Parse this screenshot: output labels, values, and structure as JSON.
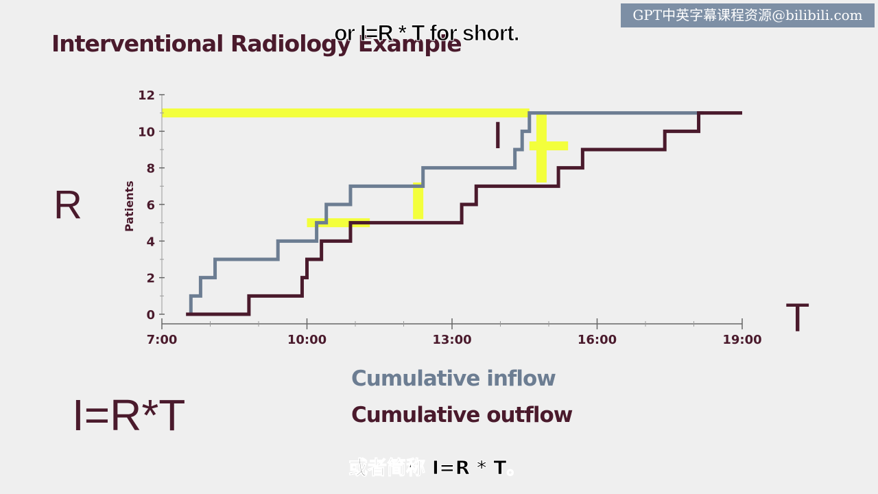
{
  "watermark": "GPT中英字幕课程资源@bilibili.com",
  "subtitle_top": "or I=R * T for short.",
  "slide_title": "Interventional Radiology Example",
  "labels": {
    "r": "R",
    "t": "T",
    "i_mark": "I",
    "formula": "I=R*T"
  },
  "legend": {
    "inflow": "Cumulative inflow",
    "outflow": "Cumulative outflow"
  },
  "subtitle_bottom": "或者简称 I=R * T。",
  "colors": {
    "inflow": "#6c7d92",
    "outflow": "#4a1a2c",
    "highlight": "#f3ff3c",
    "text": "#4a1a2c"
  },
  "chart_data": {
    "type": "line",
    "step": true,
    "ylabel": "Patients",
    "xlabel": "",
    "x_ticks": [
      "7:00",
      "10:00",
      "13:00",
      "16:00",
      "19:00"
    ],
    "y_ticks": [
      0,
      2,
      4,
      6,
      8,
      10,
      12
    ],
    "xlim": [
      7,
      19
    ],
    "ylim": [
      0,
      12
    ],
    "series": [
      {
        "name": "Cumulative inflow",
        "points": [
          [
            7.5,
            0
          ],
          [
            7.6,
            1
          ],
          [
            7.8,
            2
          ],
          [
            8.1,
            3
          ],
          [
            9.4,
            4
          ],
          [
            10.2,
            5
          ],
          [
            10.4,
            6
          ],
          [
            10.9,
            7
          ],
          [
            12.4,
            8
          ],
          [
            14.3,
            9
          ],
          [
            14.45,
            10
          ],
          [
            14.6,
            11
          ],
          [
            18.2,
            11
          ]
        ]
      },
      {
        "name": "Cumulative outflow",
        "points": [
          [
            7.5,
            0
          ],
          [
            8.8,
            1
          ],
          [
            9.9,
            2
          ],
          [
            10.0,
            3
          ],
          [
            10.3,
            4
          ],
          [
            10.9,
            5
          ],
          [
            13.2,
            6
          ],
          [
            13.5,
            7
          ],
          [
            14.8,
            7
          ],
          [
            15.2,
            8
          ],
          [
            15.7,
            9
          ],
          [
            17.4,
            10
          ],
          [
            18.1,
            11
          ],
          [
            19.0,
            11
          ]
        ]
      }
    ],
    "highlights": [
      {
        "kind": "horizontal",
        "x": [
          7,
          14.6
        ],
        "y": 11
      },
      {
        "kind": "vertical",
        "x": 14.85,
        "y": [
          7.2,
          11
        ]
      },
      {
        "kind": "horizontal",
        "x": [
          14.6,
          15.4
        ],
        "y": 9.2
      },
      {
        "kind": "vertical",
        "x": 12.3,
        "y": [
          5.2,
          7.2
        ]
      },
      {
        "kind": "horizontal",
        "x": [
          10.0,
          11.3
        ],
        "y": 5
      }
    ]
  }
}
